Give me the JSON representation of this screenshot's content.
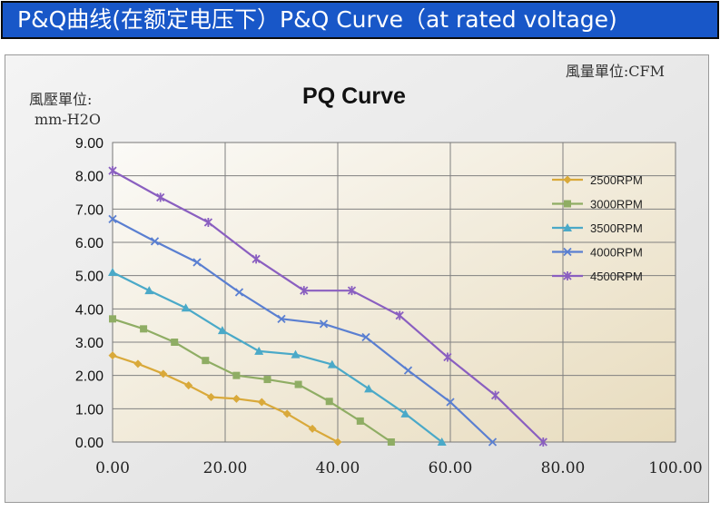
{
  "header": {
    "title": "P&Q曲线(在额定电压下）P&Q Curve（at rated voltage)"
  },
  "colors": {
    "header_bg": "#1857c8",
    "grid": "#808080"
  },
  "chart_data": {
    "type": "line",
    "title": "PQ Curve",
    "xlabel": "風量單位:CFM",
    "ylabel": "風壓單位:",
    "ylabel_unit": "mm-H2O",
    "xlim": [
      0,
      100
    ],
    "ylim": [
      0,
      9
    ],
    "x_ticks": [
      "0.00",
      "20.00",
      "40.00",
      "60.00",
      "80.00",
      "100.00"
    ],
    "y_ticks": [
      "0.00",
      "1.00",
      "2.00",
      "3.00",
      "4.00",
      "5.00",
      "6.00",
      "7.00",
      "8.00",
      "9.00"
    ],
    "grid": true,
    "legend_position": "top-right",
    "series": [
      {
        "name": "2500RPM",
        "color": "#d9a93a",
        "marker": "diamond",
        "x": [
          0,
          4.5,
          9,
          13.5,
          17.5,
          22,
          26.5,
          31,
          35.5,
          40
        ],
        "y": [
          2.6,
          2.35,
          2.05,
          1.7,
          1.35,
          1.3,
          1.2,
          0.85,
          0.4,
          0.0
        ]
      },
      {
        "name": "3000RPM",
        "color": "#8fad64",
        "marker": "square",
        "x": [
          0,
          5.5,
          11,
          16.5,
          22,
          27.5,
          33,
          38.5,
          44,
          49.5
        ],
        "y": [
          3.7,
          3.4,
          3.0,
          2.45,
          2.0,
          1.88,
          1.73,
          1.22,
          0.63,
          0.0
        ]
      },
      {
        "name": "3500RPM",
        "color": "#4aa9c8",
        "marker": "triangle",
        "x": [
          0,
          6.5,
          13,
          19.5,
          26,
          32.5,
          39,
          45.5,
          52,
          58.5
        ],
        "y": [
          5.1,
          4.55,
          4.03,
          3.35,
          2.73,
          2.63,
          2.33,
          1.6,
          0.85,
          0.0
        ]
      },
      {
        "name": "4000RPM",
        "color": "#5a7fd1",
        "marker": "x",
        "x": [
          0,
          7.5,
          15,
          22.5,
          30,
          37.5,
          45,
          52.5,
          60,
          67.5
        ],
        "y": [
          6.7,
          6.03,
          5.4,
          4.5,
          3.7,
          3.55,
          3.15,
          2.15,
          1.2,
          0.0
        ]
      },
      {
        "name": "4500RPM",
        "color": "#8a5fc0",
        "marker": "star",
        "x": [
          0,
          8.5,
          17,
          25.5,
          34,
          42.5,
          51,
          59.5,
          68,
          76.5
        ],
        "y": [
          8.15,
          7.35,
          6.6,
          5.5,
          4.55,
          4.55,
          3.8,
          2.55,
          1.4,
          0.0
        ]
      }
    ]
  }
}
